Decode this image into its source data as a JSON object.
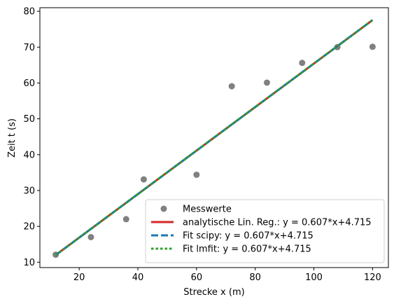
{
  "chart_data": {
    "type": "scatter",
    "xlabel": "Strecke x (m)",
    "ylabel": "Zeit t (s)",
    "xlim": [
      6.6,
      125.4
    ],
    "ylim": [
      8.5,
      81.0
    ],
    "xticks": [
      20,
      40,
      60,
      80,
      100,
      120
    ],
    "yticks": [
      10,
      20,
      30,
      40,
      50,
      60,
      70,
      80
    ],
    "grid": false,
    "legend_position": "lower-right",
    "series": [
      {
        "name": "Messwerte",
        "kind": "scatter",
        "color": "#808080",
        "x": [
          12,
          24,
          36,
          42,
          60,
          72,
          84,
          96,
          108,
          120
        ],
        "y": [
          12.1,
          17.0,
          22.0,
          33.1,
          34.4,
          59.1,
          60.1,
          65.6,
          70.0,
          70.1
        ]
      },
      {
        "name": "analytische Lin. Reg.: y = 0.607*x+4.715",
        "kind": "line",
        "color": "#d62728",
        "style": "solid",
        "slope": 0.607,
        "intercept": 4.715,
        "x": [
          12,
          120
        ]
      },
      {
        "name": "Fit scipy: y = 0.607*x+4.715",
        "kind": "line",
        "color": "#1f77b4",
        "style": "dashed",
        "slope": 0.607,
        "intercept": 4.715,
        "x": [
          12,
          120
        ]
      },
      {
        "name": "Fit lmfit: y = 0.607*x+4.715",
        "kind": "line",
        "color": "#2ca02c",
        "style": "dotted",
        "slope": 0.607,
        "intercept": 4.715,
        "x": [
          12,
          120
        ]
      }
    ]
  }
}
